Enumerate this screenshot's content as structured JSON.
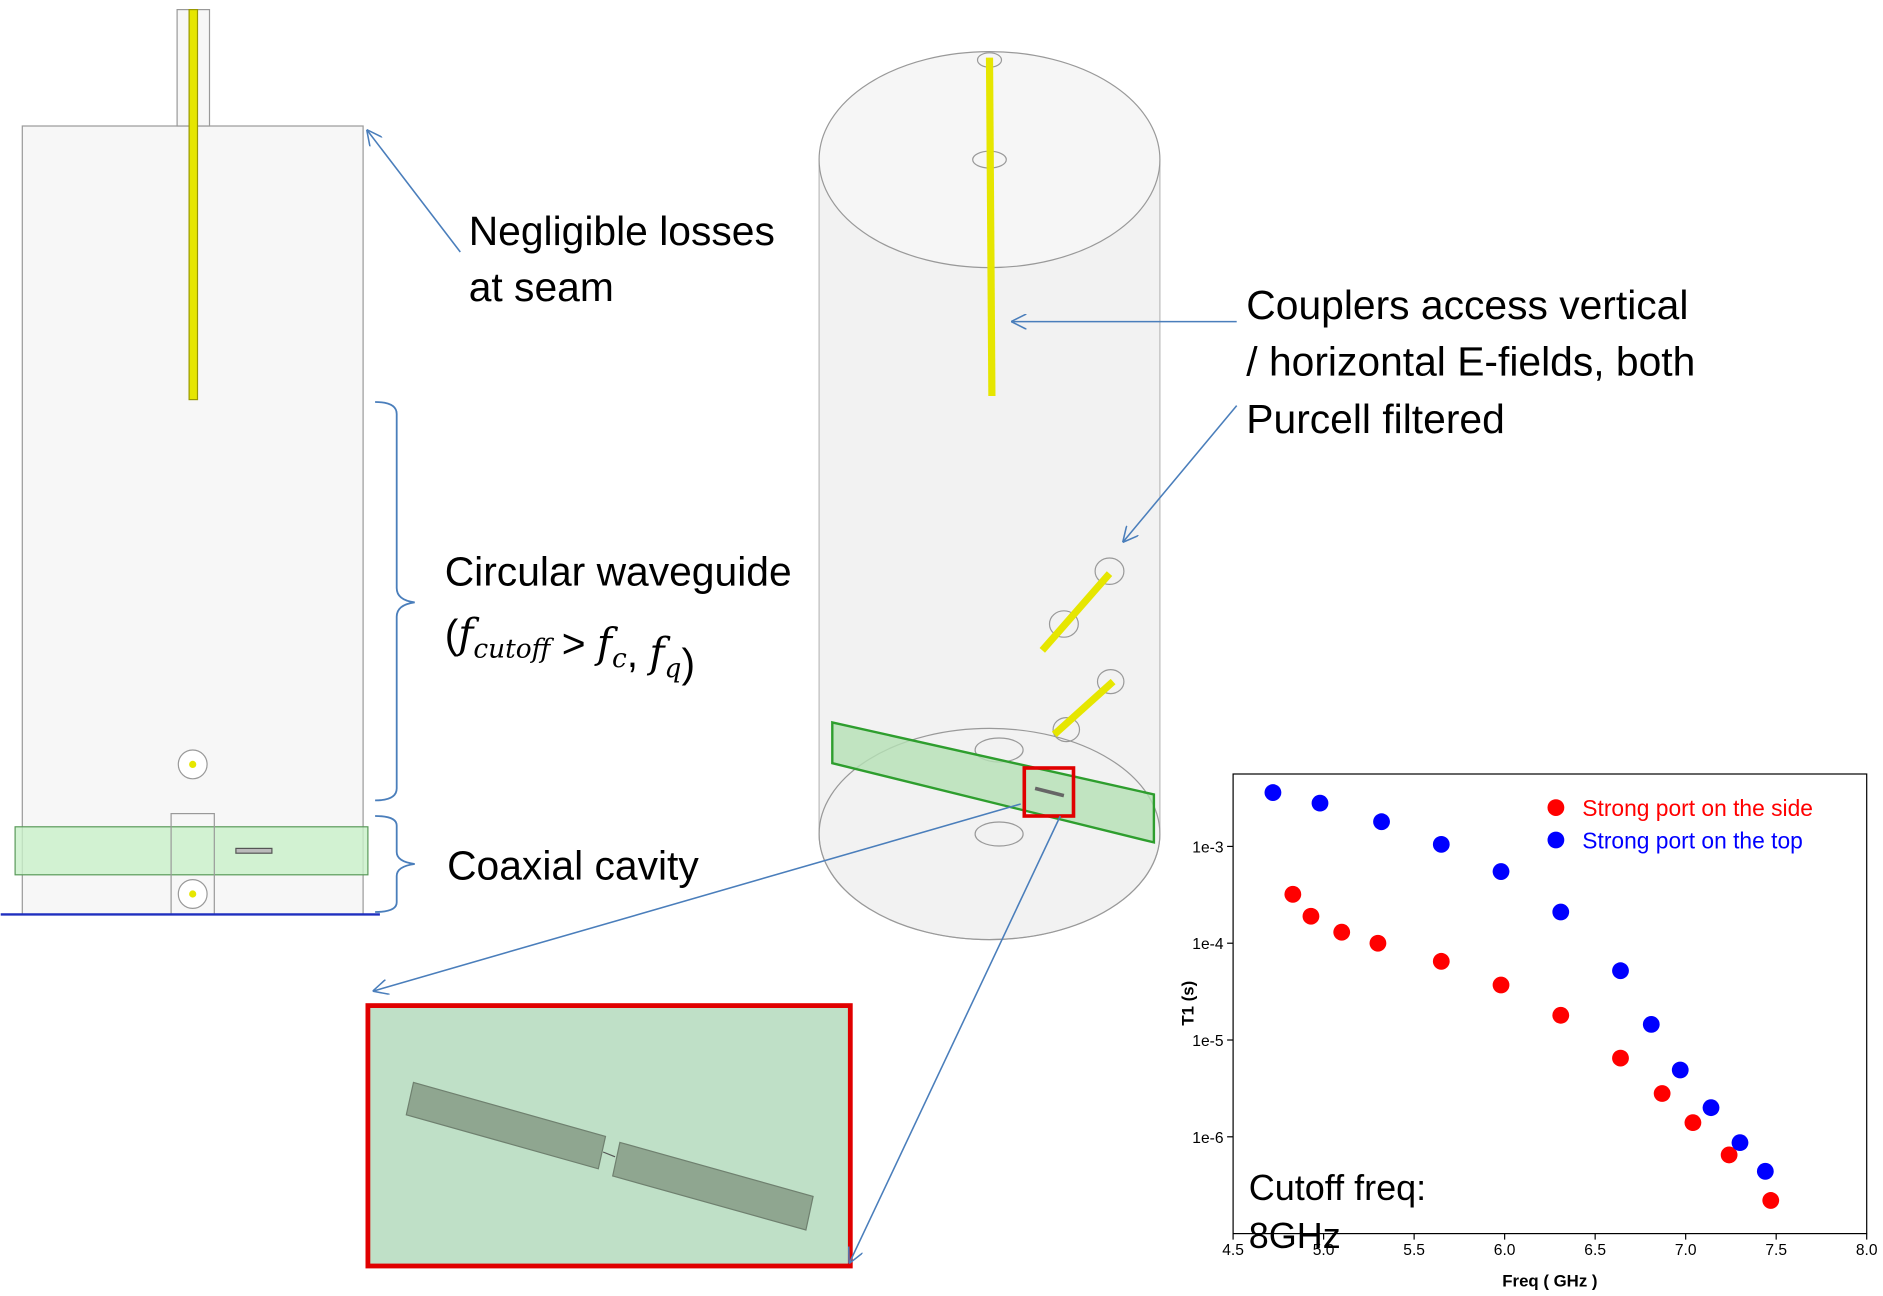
{
  "annotations": {
    "seam": [
      "Negligible losses",
      "at seam"
    ],
    "couplers": [
      "Couplers access vertical",
      "/ horizontal E-fields, both",
      "Purcell filtered"
    ],
    "waveguide": "Circular waveguide",
    "waveguide_condition": [
      {
        "text": "("
      },
      {
        "text": "f",
        "sub": "cutoff"
      },
      {
        "text": " > "
      },
      {
        "text": "f",
        "sub": "c"
      },
      {
        "text": ", "
      },
      {
        "text": "f",
        "sub": "q"
      },
      {
        "text": ")"
      }
    ],
    "coaxial": "Coaxial cavity"
  },
  "chart_data": {
    "type": "scatter",
    "x_label": "Freq ( GHz )",
    "y_label": "T1 (s)",
    "note": [
      "Cutoff freq:",
      "8GHz"
    ],
    "xlim": [
      4.5,
      8.0
    ],
    "xticks": [
      4.5,
      {
        "value": 5,
        "label": "5.0"
      },
      5.5,
      {
        "value": 6,
        "label": "6.0"
      },
      6.5,
      {
        "value": 7,
        "label": "7.0"
      },
      7.5,
      {
        "value": 8,
        "label": "8.0"
      }
    ],
    "ylim": [
      1e-07,
      0.0056
    ],
    "log_y": true,
    "yticks": [
      {
        "value": 1e-06,
        "label": "1e-6"
      },
      {
        "value": 1e-05,
        "label": "1e-5"
      },
      {
        "value": 0.0001,
        "label": "1e-4"
      },
      {
        "value": 0.001,
        "label": "1e-3"
      }
    ],
    "legend": "upper right",
    "series": [
      {
        "name": "Strong port on the side",
        "color": "#ff0000",
        "x": [
          4.83,
          4.93,
          5.1,
          5.3,
          5.65,
          5.98,
          6.31,
          6.64,
          6.87,
          7.04,
          7.24,
          7.47
        ],
        "values": [
          0.00032,
          0.00019,
          0.00013,
          0.0001,
          6.5e-05,
          3.7e-05,
          1.8e-05,
          6.5e-06,
          2.8e-06,
          1.4e-06,
          6.5e-07,
          2.2e-07
        ]
      },
      {
        "name": "Strong port on the top",
        "color": "#0000ff",
        "x": [
          4.72,
          4.98,
          5.32,
          5.65,
          5.98,
          6.31,
          6.64,
          6.81,
          6.97,
          7.14,
          7.3,
          7.44
        ],
        "values": [
          0.0036,
          0.0028,
          0.0018,
          0.00105,
          0.00055,
          0.00021,
          5.2e-05,
          1.45e-05,
          4.9e-06,
          2e-06,
          8.7e-07,
          4.4e-07
        ]
      }
    ]
  }
}
